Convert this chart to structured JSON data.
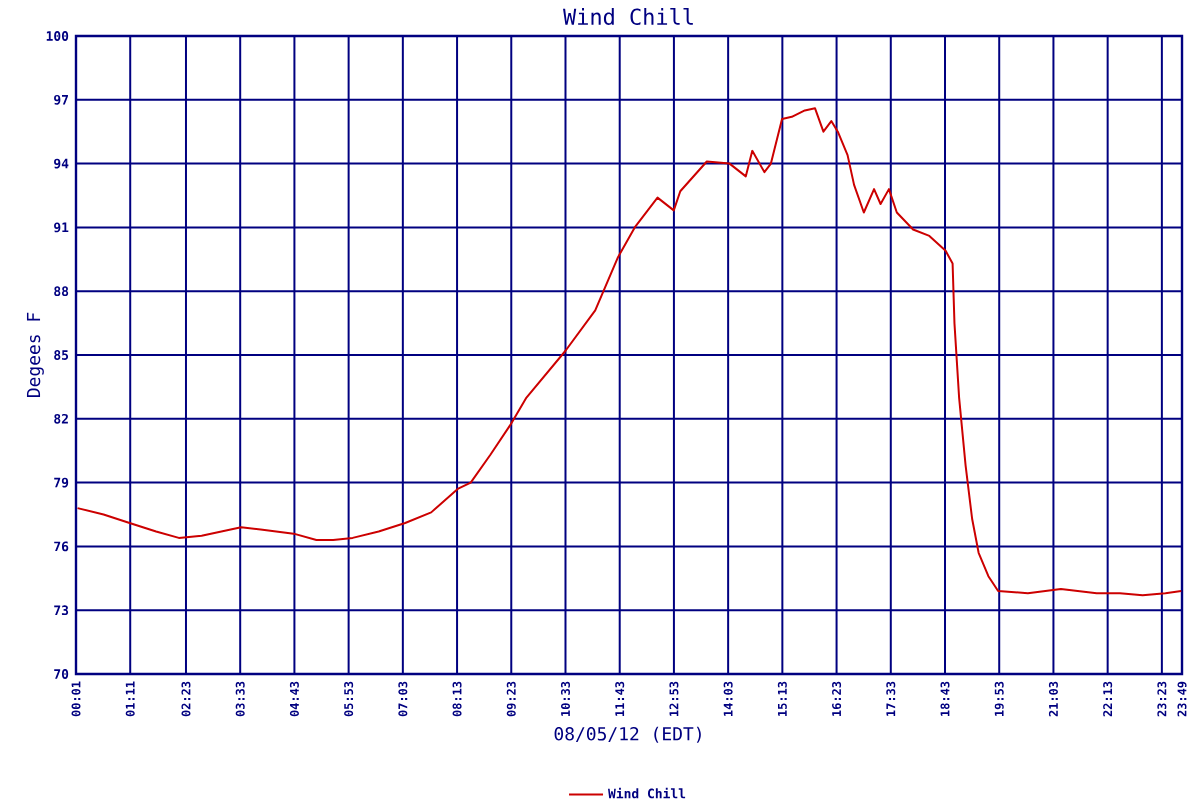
{
  "chart_data": {
    "type": "line",
    "title": "Wind Chill",
    "xlabel": "08/05/12 (EDT)",
    "ylabel": "Degees F",
    "x": [
      0.05,
      0.61,
      1.17,
      1.74,
      2.23,
      2.72,
      3.57,
      3.99,
      4.7,
      5.19,
      5.55,
      5.97,
      6.53,
      7.1,
      7.66,
      8.23,
      8.51,
      8.93,
      9.36,
      9.71,
      10.55,
      11.19,
      11.68,
      12.04,
      12.53,
      12.88,
      13.02,
      13.59,
      14.08,
      14.43,
      14.57,
      14.83,
      14.97,
      15.21,
      15.42,
      15.7,
      15.92,
      16.1,
      16.27,
      16.41,
      16.62,
      16.76,
      16.97,
      17.19,
      17.33,
      17.51,
      17.68,
      18.03,
      18.38,
      18.73,
      18.88,
      18.92,
      19.02,
      19.16,
      19.3,
      19.44,
      19.65,
      19.86,
      20.5,
      21.21,
      21.98,
      22.48,
      22.97,
      23.46,
      23.8
    ],
    "series": [
      {
        "name": "Wind Chill",
        "color": "#cc0000",
        "values": [
          77.8,
          77.5,
          77.1,
          76.7,
          76.4,
          76.5,
          76.9,
          76.8,
          76.6,
          76.3,
          76.3,
          76.4,
          76.7,
          77.1,
          77.6,
          78.7,
          79.0,
          80.3,
          81.7,
          83.0,
          85.2,
          87.1,
          89.6,
          91.0,
          92.4,
          91.8,
          92.7,
          94.1,
          94.0,
          93.4,
          94.6,
          93.6,
          94.0,
          96.1,
          96.2,
          96.5,
          96.6,
          95.5,
          96.0,
          95.5,
          94.4,
          93.0,
          91.7,
          92.8,
          92.1,
          92.8,
          91.7,
          90.9,
          90.6,
          89.9,
          89.3,
          86.5,
          83.0,
          79.8,
          77.3,
          75.7,
          74.6,
          73.9,
          73.8,
          74.0,
          73.8,
          73.8,
          73.7,
          73.8,
          73.9
        ]
      }
    ],
    "xlim": [
      0.0167,
      23.8167
    ],
    "xticks": [
      {
        "value": 0.0167,
        "label": "00:01"
      },
      {
        "value": 1.1833,
        "label": "01:11"
      },
      {
        "value": 2.3833,
        "label": "02:23"
      },
      {
        "value": 3.55,
        "label": "03:33"
      },
      {
        "value": 4.7167,
        "label": "04:43"
      },
      {
        "value": 5.8833,
        "label": "05:53"
      },
      {
        "value": 7.05,
        "label": "07:03"
      },
      {
        "value": 8.2167,
        "label": "08:13"
      },
      {
        "value": 9.3833,
        "label": "09:23"
      },
      {
        "value": 10.55,
        "label": "10:33"
      },
      {
        "value": 11.7167,
        "label": "11:43"
      },
      {
        "value": 12.8833,
        "label": "12:53"
      },
      {
        "value": 14.05,
        "label": "14:03"
      },
      {
        "value": 15.2167,
        "label": "15:13"
      },
      {
        "value": 16.3833,
        "label": "16:23"
      },
      {
        "value": 17.55,
        "label": "17:33"
      },
      {
        "value": 18.7167,
        "label": "18:43"
      },
      {
        "value": 19.8833,
        "label": "19:53"
      },
      {
        "value": 21.05,
        "label": "21:03"
      },
      {
        "value": 22.2167,
        "label": "22:13"
      },
      {
        "value": 23.3833,
        "label": "23:23"
      },
      {
        "value": 23.8167,
        "label": "23:49"
      }
    ],
    "ylim": [
      70,
      100
    ],
    "yticks": [
      70,
      73,
      76,
      79,
      82,
      85,
      88,
      91,
      94,
      97,
      100
    ],
    "grid": true,
    "legend": "bottom",
    "marker": "none",
    "line_style": "solid"
  }
}
